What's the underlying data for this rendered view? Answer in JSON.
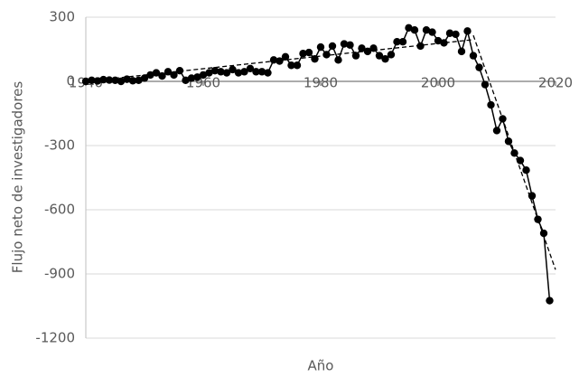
{
  "chart_data": {
    "type": "line",
    "x_label": "Año",
    "y_label": "Flujo neto de investigadores",
    "x": [
      1940,
      1941,
      1942,
      1943,
      1944,
      1945,
      1946,
      1947,
      1948,
      1949,
      1950,
      1951,
      1952,
      1953,
      1954,
      1955,
      1956,
      1957,
      1958,
      1959,
      1960,
      1961,
      1962,
      1963,
      1964,
      1965,
      1966,
      1967,
      1968,
      1969,
      1970,
      1971,
      1972,
      1973,
      1974,
      1975,
      1976,
      1977,
      1978,
      1979,
      1980,
      1981,
      1982,
      1983,
      1984,
      1985,
      1986,
      1987,
      1988,
      1989,
      1990,
      1991,
      1992,
      1993,
      1994,
      1995,
      1996,
      1997,
      1998,
      1999,
      2000,
      2001,
      2002,
      2003,
      2004,
      2005,
      2006,
      2007,
      2008,
      2009,
      2010,
      2011,
      2012,
      2013,
      2014,
      2015,
      2016,
      2017,
      2018,
      2019
    ],
    "series": [
      {
        "color": "#000000",
        "values": [
          0,
          5,
          2,
          8,
          6,
          5,
          0,
          10,
          3,
          5,
          15,
          30,
          40,
          25,
          45,
          30,
          50,
          5,
          15,
          20,
          30,
          40,
          50,
          45,
          40,
          55,
          40,
          45,
          60,
          45,
          45,
          40,
          100,
          95,
          115,
          75,
          75,
          130,
          135,
          105,
          160,
          125,
          165,
          100,
          175,
          170,
          120,
          155,
          140,
          155,
          120,
          105,
          125,
          185,
          185,
          250,
          240,
          165,
          240,
          230,
          190,
          180,
          225,
          220,
          140,
          235,
          120,
          65,
          -15,
          -110,
          -230,
          -175,
          -280,
          -335,
          -370,
          -415,
          -535,
          -645,
          -710,
          -1025
        ]
      }
    ],
    "trendlines": [
      {
        "x": [
          1940,
          2006
        ],
        "values": [
          0,
          195
        ]
      },
      {
        "x": [
          2006,
          2020
        ],
        "values": [
          215,
          -880
        ]
      }
    ],
    "xlim": [
      1940,
      2020
    ],
    "xticks": [
      1940,
      1960,
      1980,
      2000,
      2020
    ],
    "ylim": [
      -1200,
      300
    ],
    "yticks": [
      -1200,
      -900,
      -600,
      -300,
      0,
      300
    ],
    "grid": true
  }
}
